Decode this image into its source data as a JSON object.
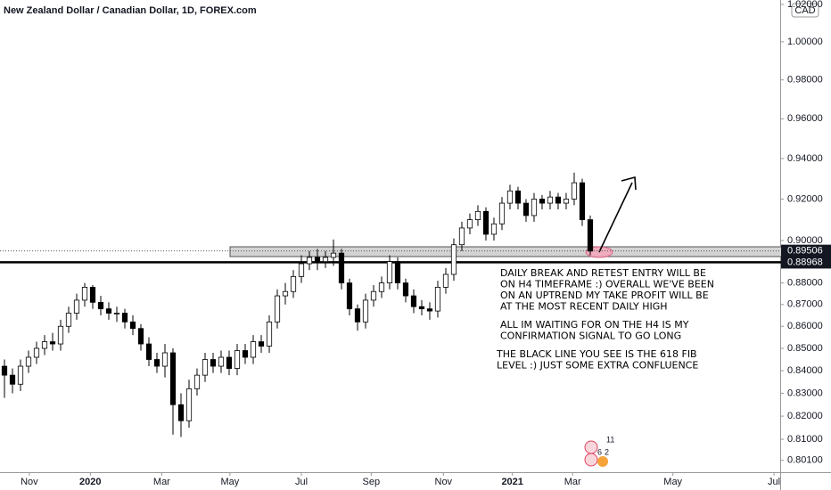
{
  "chart_data": {
    "type": "candlestick",
    "title": "New Zealand Dollar / Canadian Dollar, 1D, FOREX.com",
    "currency": "CAD",
    "log_scale": true,
    "grid": false,
    "up_color": "#ffffff",
    "down_color": "#000000",
    "open": [
      0.842,
      0.838,
      0.834,
      0.842,
      0.846,
      0.85,
      0.853,
      0.852,
      0.86,
      0.866,
      0.872,
      0.878,
      0.871,
      0.868,
      0.866,
      0.866,
      0.862,
      0.859,
      0.852,
      0.845,
      0.842,
      0.848,
      0.825,
      0.818,
      0.832,
      0.838,
      0.845,
      0.842,
      0.846,
      0.841,
      0.849,
      0.846,
      0.853,
      0.851,
      0.862,
      0.874,
      0.876,
      0.883,
      0.889,
      0.892,
      0.89,
      0.892,
      0.894,
      0.88,
      0.868,
      0.862,
      0.872,
      0.876,
      0.88,
      0.89,
      0.88,
      0.874,
      0.869,
      0.868,
      0.867,
      0.878,
      0.884,
      0.898,
      0.906,
      0.91,
      0.914,
      0.903,
      0.908,
      0.918,
      0.924,
      0.918,
      0.912,
      0.92,
      0.918,
      0.921,
      0.918,
      0.92,
      0.928,
      0.91
    ],
    "high": [
      0.845,
      0.841,
      0.845,
      0.849,
      0.853,
      0.856,
      0.857,
      0.863,
      0.869,
      0.875,
      0.88,
      0.879,
      0.874,
      0.871,
      0.869,
      0.868,
      0.865,
      0.861,
      0.855,
      0.848,
      0.852,
      0.85,
      0.83,
      0.836,
      0.841,
      0.848,
      0.848,
      0.849,
      0.849,
      0.852,
      0.852,
      0.856,
      0.856,
      0.865,
      0.877,
      0.88,
      0.886,
      0.893,
      0.895,
      0.896,
      0.895,
      0.9005,
      0.896,
      0.882,
      0.87,
      0.875,
      0.879,
      0.883,
      0.893,
      0.892,
      0.882,
      0.877,
      0.872,
      0.871,
      0.881,
      0.887,
      0.901,
      0.909,
      0.913,
      0.917,
      0.916,
      0.911,
      0.921,
      0.927,
      0.926,
      0.92,
      0.923,
      0.922,
      0.924,
      0.923,
      0.923,
      0.933,
      0.93,
      0.912
    ],
    "low": [
      0.828,
      0.83,
      0.831,
      0.839,
      0.843,
      0.847,
      0.849,
      0.849,
      0.857,
      0.863,
      0.869,
      0.868,
      0.865,
      0.863,
      0.862,
      0.859,
      0.856,
      0.849,
      0.842,
      0.839,
      0.837,
      0.812,
      0.811,
      0.815,
      0.829,
      0.835,
      0.839,
      0.839,
      0.838,
      0.838,
      0.843,
      0.843,
      0.848,
      0.848,
      0.859,
      0.87,
      0.873,
      0.88,
      0.886,
      0.886,
      0.887,
      0.888,
      0.877,
      0.865,
      0.858,
      0.859,
      0.869,
      0.873,
      0.877,
      0.877,
      0.871,
      0.866,
      0.865,
      0.863,
      0.864,
      0.875,
      0.881,
      0.895,
      0.903,
      0.907,
      0.9,
      0.9,
      0.905,
      0.915,
      0.915,
      0.909,
      0.909,
      0.915,
      0.915,
      0.915,
      0.915,
      0.917,
      0.907,
      0.893
    ],
    "close": [
      0.838,
      0.834,
      0.842,
      0.846,
      0.85,
      0.853,
      0.852,
      0.86,
      0.866,
      0.872,
      0.878,
      0.871,
      0.868,
      0.866,
      0.866,
      0.862,
      0.859,
      0.852,
      0.845,
      0.842,
      0.848,
      0.825,
      0.818,
      0.832,
      0.838,
      0.845,
      0.842,
      0.846,
      0.841,
      0.849,
      0.846,
      0.853,
      0.851,
      0.862,
      0.874,
      0.876,
      0.883,
      0.889,
      0.892,
      0.89,
      0.892,
      0.894,
      0.88,
      0.868,
      0.862,
      0.872,
      0.876,
      0.88,
      0.89,
      0.88,
      0.874,
      0.869,
      0.868,
      0.867,
      0.878,
      0.884,
      0.898,
      0.906,
      0.91,
      0.914,
      0.903,
      0.908,
      0.918,
      0.924,
      0.918,
      0.912,
      0.92,
      0.918,
      0.921,
      0.918,
      0.92,
      0.928,
      0.91,
      0.895
    ],
    "xlim": [
      -0.556,
      96.67
    ],
    "xticks": [
      {
        "value": 3.1,
        "label": "Nov"
      },
      {
        "value": 10.7,
        "label": "2020"
      },
      {
        "value": 19.6,
        "label": "Mar"
      },
      {
        "value": 28.1,
        "label": "May"
      },
      {
        "value": 37,
        "label": "Jul"
      },
      {
        "value": 45.7,
        "label": "Sep"
      },
      {
        "value": 54.7,
        "label": "Nov"
      },
      {
        "value": 63.3,
        "label": "2021"
      },
      {
        "value": 70.8,
        "label": "Mar"
      },
      {
        "value": 83.3,
        "label": "May"
      },
      {
        "value": 95.9,
        "label": "Jul"
      }
    ],
    "ylim": [
      0.796,
      1.0224
    ],
    "yticks": [
      {
        "value": 0.801,
        "label": "0.80100"
      },
      {
        "value": 0.81,
        "label": "0.81000"
      },
      {
        "value": 0.82,
        "label": "0.82000"
      },
      {
        "value": 0.83,
        "label": "0.83000"
      },
      {
        "value": 0.84,
        "label": "0.84000"
      },
      {
        "value": 0.85,
        "label": "0.85000"
      },
      {
        "value": 0.86,
        "label": "0.86000"
      },
      {
        "value": 0.87,
        "label": "0.87000"
      },
      {
        "value": 0.88,
        "label": "0.88000"
      },
      {
        "value": 0.9,
        "label": "0.90000"
      },
      {
        "value": 0.92,
        "label": "0.92000"
      },
      {
        "value": 0.94,
        "label": "0.94000"
      },
      {
        "value": 0.96,
        "label": "0.96000"
      },
      {
        "value": 0.98,
        "label": "0.98000"
      },
      {
        "value": 1.0,
        "label": "1.00000"
      },
      {
        "value": 1.02,
        "label": "1.02000"
      }
    ],
    "last_price": {
      "value": 0.89506,
      "label": "0.89506"
    },
    "fib_level": {
      "value": 0.88968,
      "label": "0.88968"
    },
    "annotations": [
      [
        "DAILY BREAK AND RETEST ENTRY WILL BE",
        "ON H4 TIMEFRAME :) OVERALL WE'VE BEEN",
        "ON AN UPTREND MY TAKE PROFIT WILL BE",
        "AT THE MOST RECENT DAILY HIGH"
      ],
      [
        "ALL IM WAITING FOR ON THE H4 IS MY",
        "CONFIRMATION SIGNAL TO GO LONG"
      ],
      [
        "THE BLACK LINE YOU SEE IS THE 618 FIB",
        "LEVEL :) JUST SOME EXTRA CONFLUENCE"
      ]
    ],
    "badges": [
      "11",
      "6",
      "2"
    ]
  }
}
